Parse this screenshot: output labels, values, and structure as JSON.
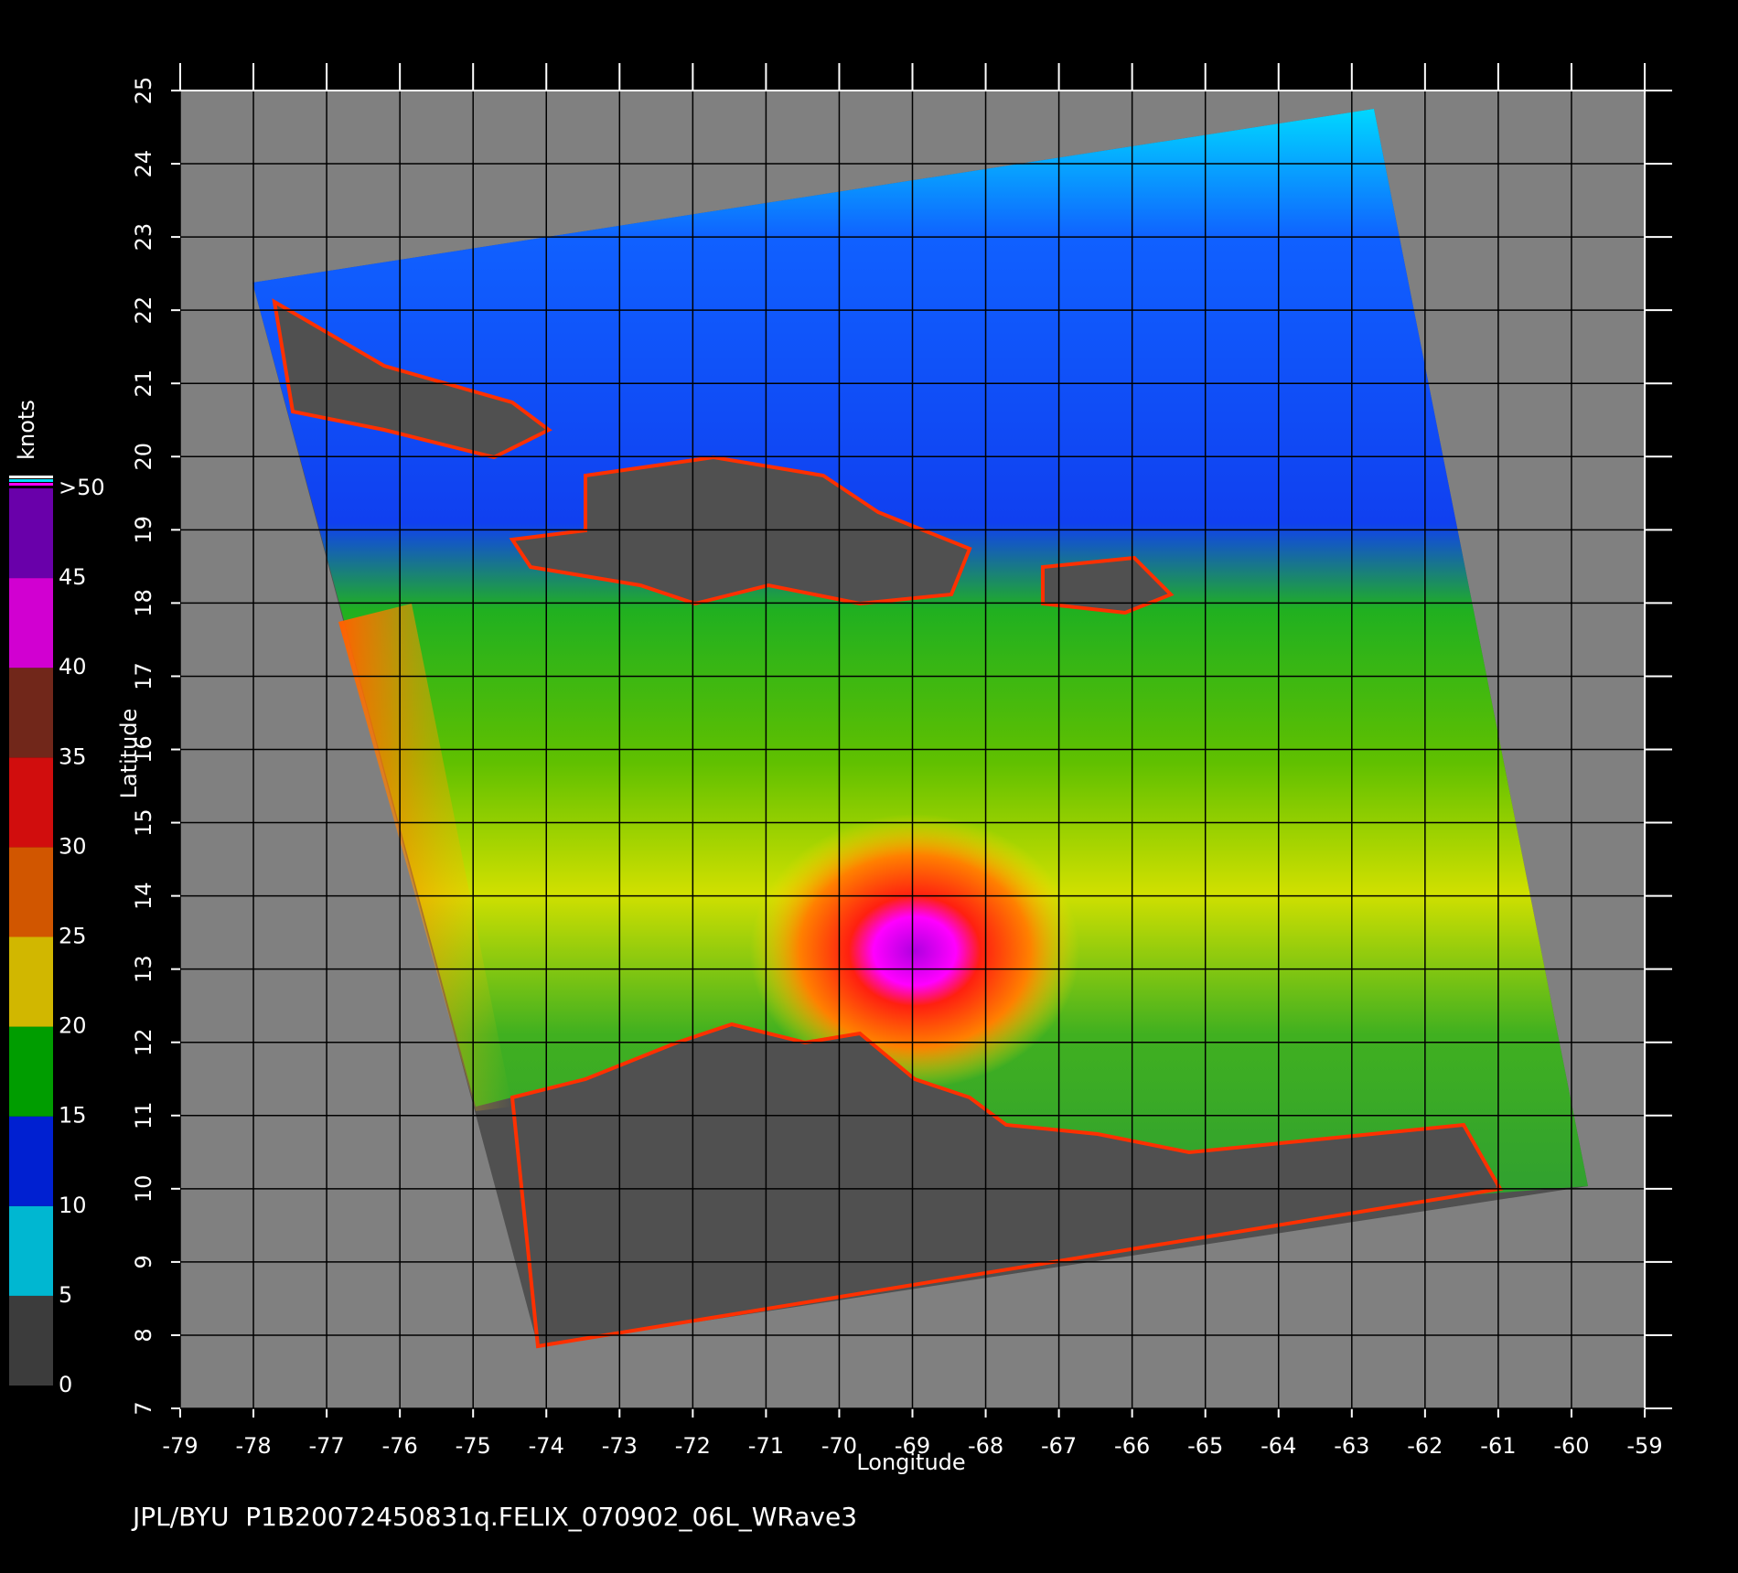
{
  "chart_data": {
    "type": "map",
    "footer": "JPL/BYU  P1B20072450831q.FELIX_070902_06L_WRave3",
    "x_label": "Longitude",
    "y_label": "Latitude",
    "xlim": [
      -79,
      -59
    ],
    "ylim": [
      7,
      25
    ],
    "xticks": [
      -79,
      -78,
      -77,
      -76,
      -75,
      -74,
      -73,
      -72,
      -71,
      -70,
      -69,
      -68,
      -67,
      -66,
      -65,
      -64,
      -63,
      -62,
      -61,
      -60,
      -59
    ],
    "yticks": [
      7,
      8,
      9,
      10,
      11,
      12,
      13,
      14,
      15,
      16,
      17,
      18,
      19,
      20,
      21,
      22,
      23,
      24,
      25
    ],
    "grid": true,
    "colorbar": {
      "label": "knots",
      "lim": [
        0,
        50
      ],
      "ticks": [
        0,
        5,
        10,
        15,
        20,
        25,
        30,
        35,
        40,
        45,
        {
          "value": 50,
          "label": ">50"
        }
      ],
      "colors": [
        "#4a4a4a",
        "#00e0ff",
        "#0028ff",
        "#00c000",
        "#ffe000",
        "#ff6a00",
        "#ff1010",
        "#8a3020",
        "#ff00ff",
        "#8000d0"
      ]
    }
  }
}
